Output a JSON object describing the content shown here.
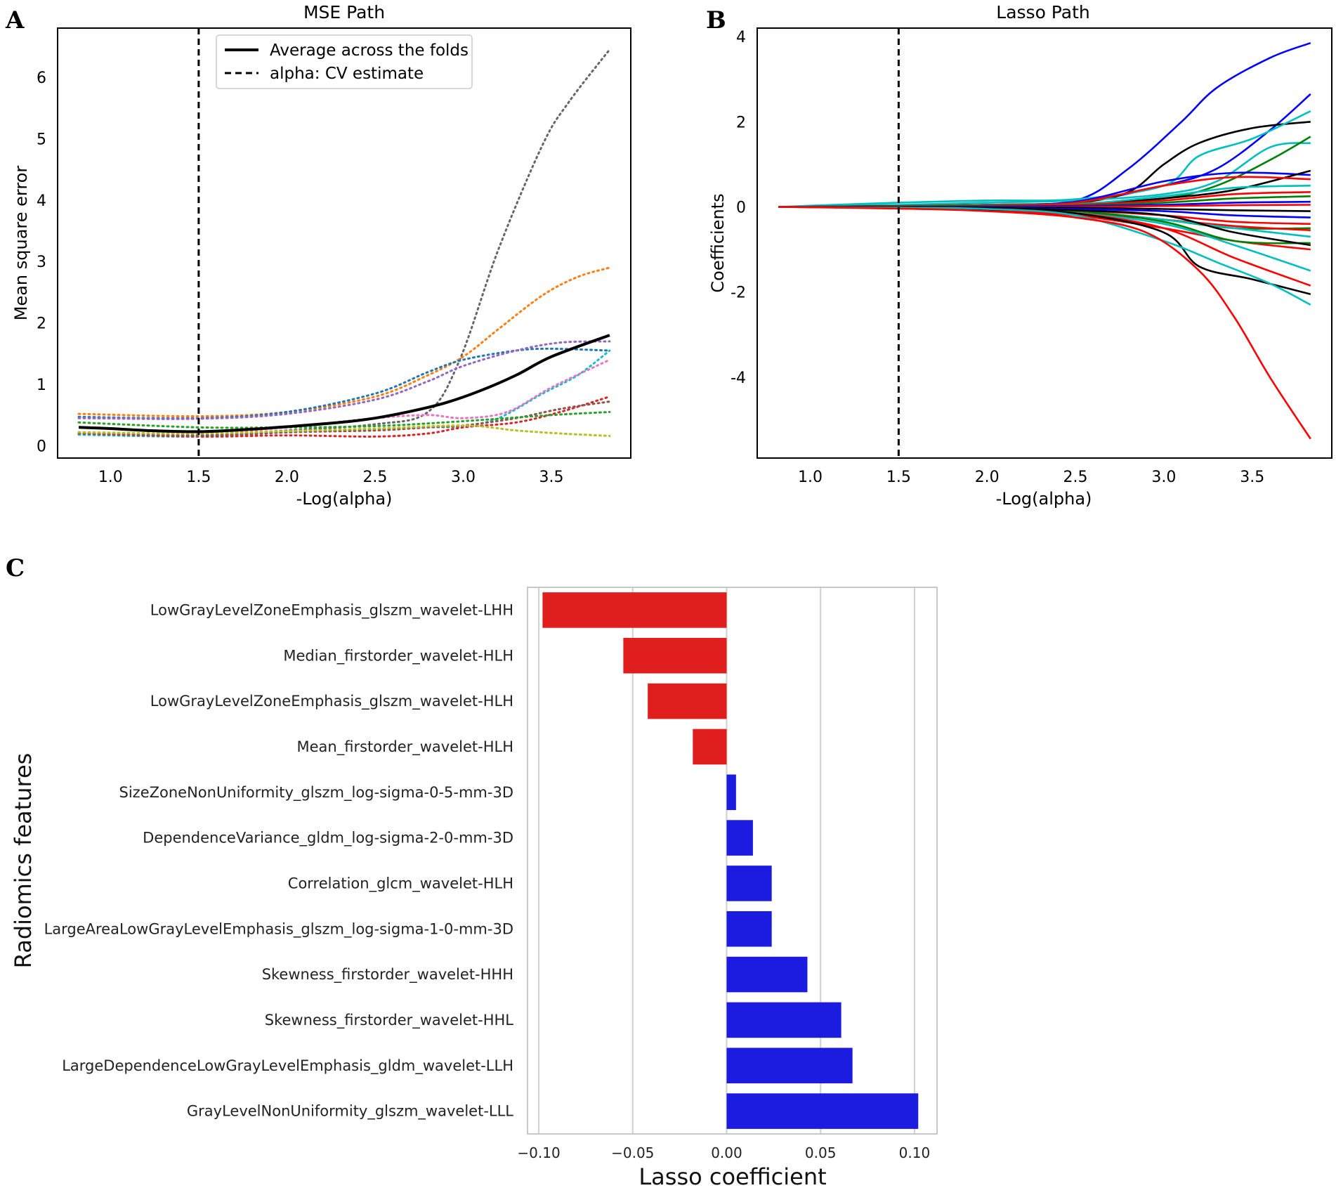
{
  "chart_data": [
    {
      "panel": "A",
      "type": "line",
      "title": "MSE Path",
      "xlabel": "-Log(alpha)",
      "ylabel": "Mean square error",
      "xlim": [
        0.7,
        3.95
      ],
      "ylim": [
        -0.2,
        6.8
      ],
      "xticks": [
        "1.0",
        "1.5",
        "2.0",
        "2.5",
        "3.0",
        "3.5"
      ],
      "yticks": [
        "0",
        "1",
        "2",
        "3",
        "4",
        "5",
        "6"
      ],
      "vline_x": 1.5,
      "legend": [
        "Average across the folds",
        "alpha: CV estimate"
      ],
      "legend_position": "top-center",
      "average": {
        "x": [
          0.82,
          1.0,
          1.2,
          1.5,
          1.8,
          2.0,
          2.3,
          2.5,
          2.7,
          2.9,
          3.1,
          3.3,
          3.5,
          3.83
        ],
        "y": [
          0.3,
          0.28,
          0.25,
          0.23,
          0.27,
          0.31,
          0.38,
          0.45,
          0.56,
          0.7,
          0.9,
          1.15,
          1.45,
          1.8
        ]
      },
      "folds": [
        {
          "color": "#666666",
          "x": [
            0.82,
            1.5,
            2.0,
            2.5,
            2.8,
            2.98,
            3.2,
            3.45,
            3.6,
            3.83
          ],
          "y": [
            0.2,
            0.17,
            0.25,
            0.35,
            0.55,
            1.4,
            3.2,
            4.9,
            5.6,
            6.45
          ]
        },
        {
          "color": "#ff7f0e",
          "x": [
            0.82,
            1.5,
            2.0,
            2.5,
            2.8,
            3.0,
            3.2,
            3.45,
            3.65,
            3.83
          ],
          "y": [
            0.52,
            0.48,
            0.55,
            0.8,
            1.15,
            1.45,
            1.9,
            2.45,
            2.75,
            2.9
          ]
        },
        {
          "color": "#1f77b4",
          "x": [
            0.82,
            1.5,
            2.0,
            2.5,
            2.8,
            3.0,
            3.3,
            3.5,
            3.83
          ],
          "y": [
            0.47,
            0.45,
            0.55,
            0.85,
            1.2,
            1.4,
            1.55,
            1.58,
            1.55
          ]
        },
        {
          "color": "#9467bd",
          "x": [
            0.82,
            1.5,
            2.0,
            2.5,
            2.8,
            3.0,
            3.3,
            3.55,
            3.83
          ],
          "y": [
            0.45,
            0.44,
            0.52,
            0.75,
            1.05,
            1.3,
            1.55,
            1.68,
            1.7
          ]
        },
        {
          "color": "#17becf",
          "x": [
            0.82,
            1.5,
            2.0,
            2.5,
            2.8,
            3.0,
            3.2,
            3.45,
            3.65,
            3.83
          ],
          "y": [
            0.18,
            0.15,
            0.22,
            0.27,
            0.3,
            0.32,
            0.45,
            0.85,
            1.15,
            1.55
          ]
        },
        {
          "color": "#e377c2",
          "x": [
            0.82,
            1.5,
            2.0,
            2.5,
            2.8,
            3.0,
            3.25,
            3.5,
            3.83
          ],
          "y": [
            0.22,
            0.2,
            0.3,
            0.45,
            0.5,
            0.45,
            0.55,
            0.95,
            1.4
          ]
        },
        {
          "color": "#d62728",
          "x": [
            0.82,
            1.5,
            2.0,
            2.5,
            2.8,
            3.0,
            3.3,
            3.55,
            3.83
          ],
          "y": [
            0.2,
            0.15,
            0.17,
            0.15,
            0.2,
            0.3,
            0.38,
            0.55,
            0.8
          ]
        },
        {
          "color": "#8c564b",
          "x": [
            0.82,
            1.5,
            2.0,
            2.5,
            2.8,
            3.0,
            3.3,
            3.55,
            3.83
          ],
          "y": [
            0.2,
            0.16,
            0.22,
            0.25,
            0.3,
            0.33,
            0.45,
            0.6,
            0.72
          ]
        },
        {
          "color": "#2ca02c",
          "x": [
            0.82,
            1.5,
            2.0,
            2.5,
            3.0,
            3.5,
            3.83
          ],
          "y": [
            0.38,
            0.3,
            0.3,
            0.32,
            0.4,
            0.5,
            0.55
          ]
        },
        {
          "color": "#bcbd22",
          "x": [
            0.82,
            1.5,
            2.0,
            2.5,
            3.0,
            3.3,
            3.55,
            3.83
          ],
          "y": [
            0.22,
            0.2,
            0.24,
            0.28,
            0.33,
            0.25,
            0.2,
            0.16
          ]
        }
      ]
    },
    {
      "panel": "B",
      "type": "line",
      "title": "Lasso Path",
      "xlabel": "-Log(alpha)",
      "ylabel": "Coefficients",
      "xlim": [
        0.7,
        3.95
      ],
      "ylim": [
        -5.9,
        4.2
      ],
      "xticks": [
        "1.0",
        "1.5",
        "2.0",
        "2.5",
        "3.0",
        "3.5"
      ],
      "yticks": [
        "4",
        "2",
        "0",
        "-2",
        "-4"
      ],
      "vline_x": 1.5,
      "paths": [
        {
          "color": "#0000ff",
          "x": [
            0.82,
            1.5,
            2.0,
            2.5,
            2.8,
            3.1,
            3.3,
            3.6,
            3.83
          ],
          "y": [
            0,
            0.02,
            0.05,
            0.15,
            0.9,
            2.0,
            2.8,
            3.5,
            3.85
          ]
        },
        {
          "color": "#0000ff",
          "x": [
            0.82,
            1.5,
            2.0,
            2.5,
            3.0,
            3.3,
            3.6,
            3.83
          ],
          "y": [
            0,
            0.02,
            0.05,
            0.1,
            0.5,
            0.9,
            1.8,
            2.65
          ]
        },
        {
          "color": "#000000",
          "x": [
            0.82,
            1.5,
            2.0,
            2.5,
            2.8,
            3.0,
            3.2,
            3.5,
            3.83
          ],
          "y": [
            0,
            0.02,
            0.05,
            0.1,
            0.35,
            1.0,
            1.5,
            1.85,
            2.0
          ]
        },
        {
          "color": "#00bfbf",
          "x": [
            0.82,
            1.5,
            2.0,
            2.5,
            3.0,
            3.2,
            3.5,
            3.83
          ],
          "y": [
            0,
            0.1,
            0.15,
            0.18,
            0.5,
            1.2,
            1.6,
            2.25
          ]
        },
        {
          "color": "#00bfbf",
          "x": [
            0.82,
            1.5,
            2.0,
            2.5,
            3.0,
            3.3,
            3.6,
            3.83
          ],
          "y": [
            0,
            0.05,
            0.1,
            0.15,
            0.3,
            0.6,
            1.4,
            1.5
          ]
        },
        {
          "color": "#008000",
          "x": [
            0.82,
            1.5,
            2.0,
            2.5,
            3.0,
            3.3,
            3.6,
            3.83
          ],
          "y": [
            0,
            0.02,
            0.05,
            0.08,
            0.2,
            0.5,
            1.1,
            1.65
          ]
        },
        {
          "color": "#0000ff",
          "x": [
            0.82,
            1.5,
            2.0,
            2.5,
            3.0,
            3.4,
            3.83
          ],
          "y": [
            0,
            0.02,
            0.04,
            0.12,
            0.6,
            0.8,
            0.75
          ]
        },
        {
          "color": "#000000",
          "x": [
            0.82,
            1.5,
            2.0,
            2.5,
            3.0,
            3.4,
            3.83
          ],
          "y": [
            0,
            0.01,
            0.02,
            0.05,
            0.2,
            0.4,
            0.85
          ]
        },
        {
          "color": "#ff0000",
          "x": [
            0.82,
            1.5,
            2.0,
            2.5,
            3.0,
            3.4,
            3.83
          ],
          "y": [
            0,
            0.02,
            0.04,
            0.1,
            0.5,
            0.7,
            0.65
          ]
        },
        {
          "color": "#00bfbf",
          "x": [
            0.82,
            1.5,
            2.0,
            2.5,
            3.0,
            3.4,
            3.83
          ],
          "y": [
            0,
            0.01,
            0.03,
            0.06,
            0.25,
            0.45,
            0.5
          ]
        },
        {
          "color": "#ff0000",
          "x": [
            0.82,
            1.5,
            2.0,
            2.5,
            3.0,
            3.4,
            3.83
          ],
          "y": [
            0,
            0.01,
            0.02,
            0.05,
            0.15,
            0.3,
            0.35
          ]
        },
        {
          "color": "#008000",
          "x": [
            0.82,
            1.5,
            2.0,
            2.5,
            3.0,
            3.4,
            3.83
          ],
          "y": [
            0,
            0.01,
            0.02,
            0.03,
            0.1,
            0.2,
            0.25
          ]
        },
        {
          "color": "#0000ff",
          "x": [
            0.82,
            1.5,
            2.0,
            2.5,
            3.0,
            3.4,
            3.83
          ],
          "y": [
            0,
            0.0,
            0.01,
            0.02,
            0.05,
            0.1,
            0.12
          ]
        },
        {
          "color": "#ff0000",
          "x": [
            0.82,
            1.5,
            2.0,
            2.5,
            3.0,
            3.4,
            3.83
          ],
          "y": [
            0,
            0.0,
            0.0,
            0.0,
            0.02,
            0.04,
            0.05
          ]
        },
        {
          "color": "#000000",
          "x": [
            0.82,
            1.5,
            2.0,
            2.5,
            3.0,
            3.4,
            3.83
          ],
          "y": [
            0,
            0.0,
            -0.01,
            -0.02,
            -0.05,
            -0.08,
            -0.1
          ]
        },
        {
          "color": "#0000ff",
          "x": [
            0.82,
            1.5,
            2.0,
            2.5,
            3.0,
            3.4,
            3.83
          ],
          "y": [
            0,
            -0.01,
            -0.02,
            -0.05,
            -0.1,
            -0.2,
            -0.25
          ]
        },
        {
          "color": "#ff0000",
          "x": [
            0.82,
            1.5,
            2.0,
            2.5,
            3.0,
            3.4,
            3.83
          ],
          "y": [
            0,
            -0.01,
            -0.03,
            -0.08,
            -0.2,
            -0.35,
            -0.4
          ]
        },
        {
          "color": "#008000",
          "x": [
            0.82,
            1.5,
            2.0,
            2.5,
            3.0,
            3.4,
            3.83
          ],
          "y": [
            0,
            -0.01,
            -0.03,
            -0.1,
            -0.3,
            -0.5,
            -0.5
          ]
        },
        {
          "color": "#ff0000",
          "x": [
            0.82,
            1.5,
            2.0,
            2.5,
            3.0,
            3.4,
            3.83
          ],
          "y": [
            0,
            -0.02,
            -0.05,
            -0.15,
            -0.3,
            -0.45,
            -0.55
          ]
        },
        {
          "color": "#00bfbf",
          "x": [
            0.82,
            1.5,
            2.0,
            2.5,
            3.0,
            3.4,
            3.83
          ],
          "y": [
            0,
            -0.02,
            -0.05,
            -0.1,
            -0.3,
            -0.5,
            -0.7
          ]
        },
        {
          "color": "#ff0000",
          "x": [
            0.82,
            1.5,
            2.0,
            2.5,
            3.0,
            3.4,
            3.83
          ],
          "y": [
            0,
            -0.03,
            -0.08,
            -0.2,
            -0.5,
            -0.8,
            -1.0
          ]
        },
        {
          "color": "#008000",
          "x": [
            0.82,
            1.5,
            2.0,
            2.5,
            3.0,
            3.4,
            3.83
          ],
          "y": [
            0,
            -0.02,
            -0.05,
            -0.1,
            -0.35,
            -0.8,
            -0.85
          ]
        },
        {
          "color": "#000000",
          "x": [
            0.82,
            1.5,
            2.0,
            2.5,
            3.0,
            3.4,
            3.83
          ],
          "y": [
            0,
            -0.01,
            -0.03,
            -0.08,
            -0.2,
            -0.6,
            -0.9
          ]
        },
        {
          "color": "#00bfbf",
          "x": [
            0.82,
            1.5,
            2.0,
            2.5,
            3.0,
            3.4,
            3.83
          ],
          "y": [
            0,
            -0.02,
            -0.05,
            -0.15,
            -0.4,
            -0.9,
            -1.5
          ]
        },
        {
          "color": "#ff0000",
          "x": [
            0.82,
            1.5,
            2.0,
            2.5,
            3.0,
            3.4,
            3.83
          ],
          "y": [
            0,
            -0.02,
            -0.05,
            -0.15,
            -0.5,
            -1.2,
            -1.85
          ]
        },
        {
          "color": "#000000",
          "x": [
            0.82,
            1.5,
            2.0,
            2.5,
            3.0,
            3.2,
            3.5,
            3.83
          ],
          "y": [
            0,
            -0.02,
            -0.06,
            -0.15,
            -0.6,
            -1.4,
            -1.7,
            -2.05
          ]
        },
        {
          "color": "#00bfbf",
          "x": [
            0.82,
            1.5,
            2.0,
            2.5,
            3.0,
            3.3,
            3.6,
            3.83
          ],
          "y": [
            0,
            -0.02,
            -0.05,
            -0.2,
            -0.8,
            -1.3,
            -1.8,
            -2.3
          ]
        },
        {
          "color": "#ff0000",
          "x": [
            0.82,
            1.5,
            2.0,
            2.5,
            2.9,
            3.2,
            3.4,
            3.6,
            3.83
          ],
          "y": [
            0,
            -0.04,
            -0.1,
            -0.25,
            -0.6,
            -1.5,
            -2.6,
            -4.0,
            -5.45
          ]
        }
      ]
    },
    {
      "panel": "C",
      "type": "bar",
      "orientation": "horizontal",
      "xlabel": "Lasso coefficient",
      "ylabel": "Radiomics features",
      "xlim": [
        -0.106,
        0.112
      ],
      "xticks": [
        "−0.10",
        "−0.05",
        "0.00",
        "0.05",
        "0.10"
      ],
      "xtick_values": [
        -0.1,
        -0.05,
        0.0,
        0.05,
        0.1
      ],
      "negative_color": "#e01e1e",
      "positive_color": "#1c1ce0",
      "categories": [
        "LowGrayLevelZoneEmphasis_glszm_wavelet-LHH",
        "Median_firstorder_wavelet-HLH",
        "LowGrayLevelZoneEmphasis_glszm_wavelet-HLH",
        "Mean_firstorder_wavelet-HLH",
        "SizeZoneNonUniformity_glszm_log-sigma-0-5-mm-3D",
        "DependenceVariance_gldm_log-sigma-2-0-mm-3D",
        "Correlation_glcm_wavelet-HLH",
        "LargeAreaLowGrayLevelEmphasis_glszm_log-sigma-1-0-mm-3D",
        "Skewness_firstorder_wavelet-HHH",
        "Skewness_firstorder_wavelet-HHL",
        "LargeDependenceLowGrayLevelEmphasis_gldm_wavelet-LLH",
        "GrayLevelNonUniformity_glszm_wavelet-LLL"
      ],
      "values": [
        -0.098,
        -0.055,
        -0.042,
        -0.018,
        0.005,
        0.014,
        0.024,
        0.024,
        0.043,
        0.061,
        0.067,
        0.102
      ]
    }
  ]
}
